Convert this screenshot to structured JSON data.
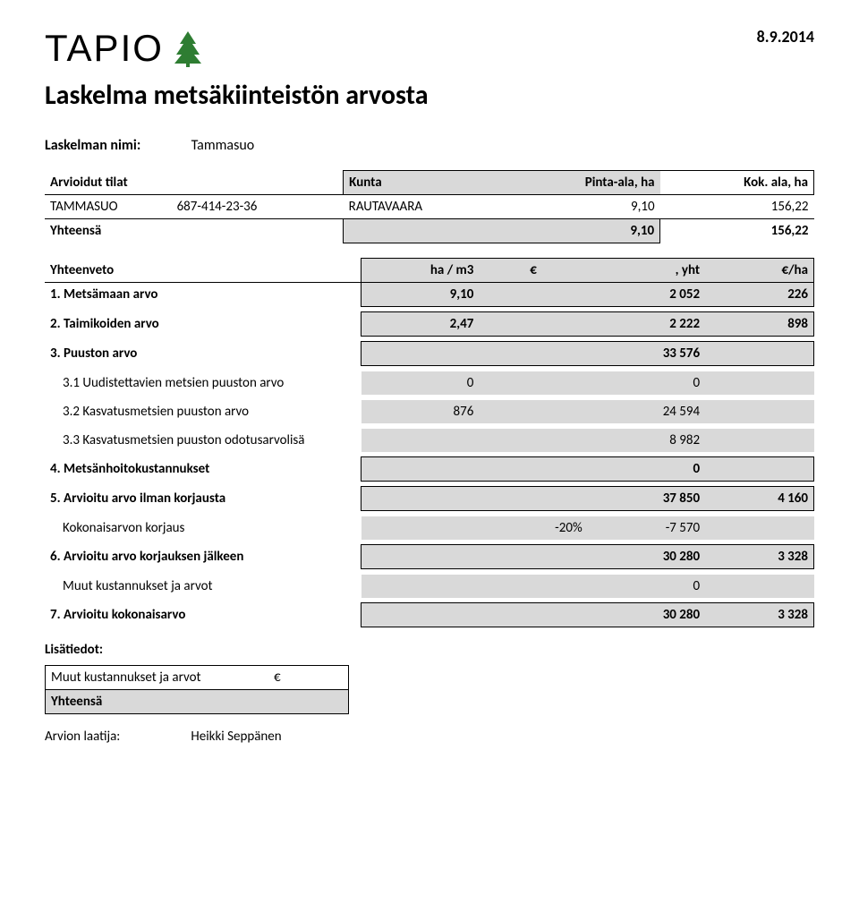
{
  "header": {
    "logo_text": "TAPIO",
    "date": "8.9.2014",
    "title": "Laskelma metsäkiinteistön arvosta"
  },
  "nimi": {
    "label": "Laskelman nimi:",
    "value": "Tammasuo"
  },
  "tilat": {
    "headers": [
      "Arvioidut tilat",
      "Kunta",
      "Pinta-ala, ha",
      "Kok. ala, ha"
    ],
    "rows": [
      [
        "TAMMASUO",
        "687-414-23-36",
        "RAUTAVAARA",
        "9,10",
        "156,22"
      ]
    ],
    "total": [
      "Yhteensä",
      "",
      "",
      "9,10",
      "156,22"
    ]
  },
  "veto": {
    "headers": [
      "Yhteenveto",
      "ha / m3",
      "€",
      ", yht",
      "€/ha"
    ],
    "rows": [
      {
        "label": "1. Metsämaan arvo",
        "c1": "9,10",
        "c2": "",
        "c3": "2 052",
        "c4": "226",
        "bold": true,
        "shade": true,
        "border": true,
        "indent": false
      },
      {
        "spacer": true
      },
      {
        "label": "2. Taimikoiden arvo",
        "c1": "2,47",
        "c2": "",
        "c3": "2 222",
        "c4": "898",
        "bold": true,
        "shade": true,
        "border": true,
        "indent": false
      },
      {
        "spacer": true
      },
      {
        "label": "3. Puuston arvo",
        "c1": "",
        "c2": "",
        "c3": "33 576",
        "c4": "",
        "bold": true,
        "shade": true,
        "border": true,
        "indent": false
      },
      {
        "spacer": true
      },
      {
        "label": "3.1 Uudistettavien metsien puuston arvo",
        "c1": "0",
        "c2": "",
        "c3": "0",
        "c4": "",
        "bold": false,
        "shade": true,
        "border": false,
        "indent": true
      },
      {
        "spacer": true
      },
      {
        "label": "3.2 Kasvatusmetsien puuston arvo",
        "c1": "876",
        "c2": "",
        "c3": "24 594",
        "c4": "",
        "bold": false,
        "shade": true,
        "border": false,
        "indent": true
      },
      {
        "spacer": true
      },
      {
        "label": "3.3 Kasvatusmetsien puuston odotusarvolisä",
        "c1": "",
        "c2": "",
        "c3": "8 982",
        "c4": "",
        "bold": false,
        "shade": true,
        "border": false,
        "indent": true
      },
      {
        "spacer": true
      },
      {
        "label": "4. Metsänhoitokustannukset",
        "c1": "",
        "c2": "",
        "c3": "0",
        "c4": "",
        "bold": true,
        "shade": true,
        "border": true,
        "indent": false
      },
      {
        "spacer": true
      },
      {
        "label": "5. Arvioitu arvo ilman korjausta",
        "c1": "",
        "c2": "",
        "c3": "37 850",
        "c4": "4 160",
        "bold": true,
        "shade": true,
        "border": true,
        "indent": false
      },
      {
        "spacer": true
      },
      {
        "label": "Kokonaisarvon korjaus",
        "c1": "",
        "c2": "-20%",
        "c3": "-7 570",
        "c4": "",
        "bold": false,
        "shade": true,
        "border": false,
        "indent": true
      },
      {
        "spacer": true
      },
      {
        "label": "6. Arvioitu arvo korjauksen jälkeen",
        "c1": "",
        "c2": "",
        "c3": "30 280",
        "c4": "3 328",
        "bold": true,
        "shade": true,
        "border": true,
        "indent": false
      },
      {
        "spacer": true
      },
      {
        "label": "Muut kustannukset ja arvot",
        "c1": "",
        "c2": "",
        "c3": "0",
        "c4": "",
        "bold": false,
        "shade": true,
        "border": false,
        "indent": true
      },
      {
        "spacer": true
      },
      {
        "label": "7. Arvioitu kokonaisarvo",
        "c1": "",
        "c2": "",
        "c3": "30 280",
        "c4": "3 328",
        "bold": true,
        "shade": true,
        "border": true,
        "indent": false
      }
    ]
  },
  "lisatiedot": {
    "title": "Lisätiedot:",
    "rows": [
      {
        "label": "Muut kustannukset ja arvot",
        "cur": "€",
        "val": ""
      },
      {
        "label": "Yhteensä",
        "cur": "",
        "val": "",
        "bold": true
      }
    ]
  },
  "author": {
    "label": "Arvion laatija:",
    "name": "Heikki Seppänen"
  },
  "colors": {
    "shade": "#d9d9d9",
    "tree": "#2e7d32"
  }
}
